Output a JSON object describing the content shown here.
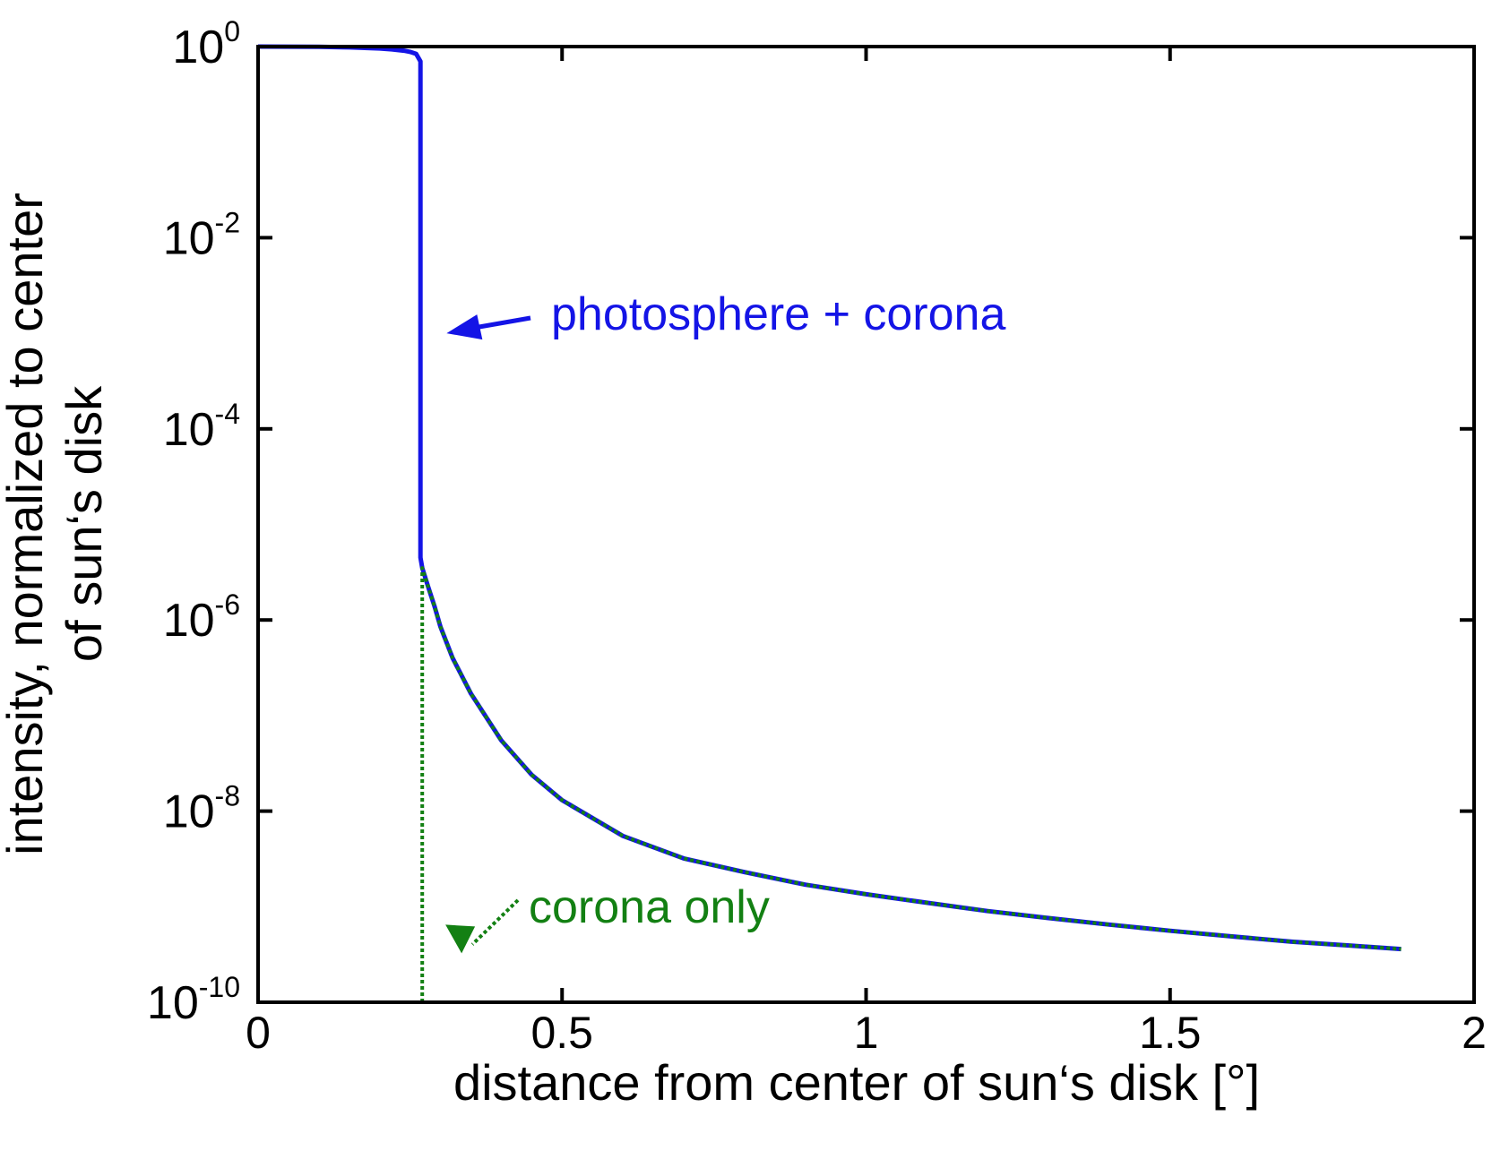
{
  "chart_data": {
    "type": "line",
    "title": "",
    "xlabel": "distance from center of sun‘s disk [°]",
    "ylabel_line1": "intensity, normalized to center",
    "ylabel_line2": "of sun‘s disk",
    "xlim": [
      0,
      2
    ],
    "ylim": [
      1e-10,
      1
    ],
    "yscale": "log",
    "grid": false,
    "x_ticks": [
      {
        "value": 0,
        "label": "0"
      },
      {
        "value": 0.5,
        "label": "0.5"
      },
      {
        "value": 1,
        "label": "1"
      },
      {
        "value": 1.5,
        "label": "1.5"
      },
      {
        "value": 2,
        "label": "2"
      }
    ],
    "y_ticks": [
      {
        "value": 1,
        "base": "10",
        "exp": "0"
      },
      {
        "value": 0.01,
        "base": "10",
        "exp": "-2"
      },
      {
        "value": 0.0001,
        "base": "10",
        "exp": "-4"
      },
      {
        "value": 1e-06,
        "base": "10",
        "exp": "-6"
      },
      {
        "value": 1e-08,
        "base": "10",
        "exp": "-8"
      },
      {
        "value": 1e-10,
        "base": "10",
        "exp": "-10"
      }
    ],
    "series": [
      {
        "name": "photosphere + corona",
        "color": "#1414e6",
        "style": "solid",
        "x": [
          0,
          0.05,
          0.1,
          0.15,
          0.2,
          0.22,
          0.24,
          0.25,
          0.26,
          0.267,
          0.267,
          0.27,
          0.28,
          0.29,
          0.3,
          0.32,
          0.35,
          0.4,
          0.45,
          0.5,
          0.6,
          0.7,
          0.8,
          0.9,
          1.0,
          1.1,
          1.2,
          1.3,
          1.4,
          1.5,
          1.6,
          1.7,
          1.8,
          1.88
        ],
        "y": [
          1,
          0.998,
          0.993,
          0.98,
          0.955,
          0.935,
          0.905,
          0.88,
          0.84,
          0.7,
          4.5e-06,
          3.5e-06,
          2.2e-06,
          1.4e-06,
          8.5e-07,
          4e-07,
          1.7e-07,
          5.5e-08,
          2.4e-08,
          1.3e-08,
          5.5e-09,
          3.2e-09,
          2.3e-09,
          1.7e-09,
          1.35e-09,
          1.1e-09,
          9e-10,
          7.6e-10,
          6.5e-10,
          5.6e-10,
          4.9e-10,
          4.3e-10,
          3.9e-10,
          3.6e-10
        ]
      },
      {
        "name": "corona only",
        "color": "#138013",
        "style": "dotted",
        "x": [
          0.27,
          0.27,
          0.28,
          0.29,
          0.3,
          0.32,
          0.35,
          0.4,
          0.45,
          0.5,
          0.6,
          0.7,
          0.8,
          0.9,
          1.0,
          1.1,
          1.2,
          1.3,
          1.4,
          1.5,
          1.6,
          1.7,
          1.8,
          1.88
        ],
        "y": [
          1e-10,
          3.5e-06,
          2.2e-06,
          1.4e-06,
          8.5e-07,
          4e-07,
          1.7e-07,
          5.5e-08,
          2.4e-08,
          1.3e-08,
          5.5e-09,
          3.2e-09,
          2.3e-09,
          1.7e-09,
          1.35e-09,
          1.1e-09,
          9e-10,
          7.6e-10,
          6.5e-10,
          5.6e-10,
          4.9e-10,
          4.3e-10,
          3.9e-10,
          3.6e-10
        ]
      }
    ],
    "annotations": [
      {
        "text": "photosphere + corona",
        "color": "#1414e6",
        "arrow": "solid",
        "points_to_x": 0.31,
        "points_to_y": 0.001
      },
      {
        "text": "corona only",
        "color": "#138013",
        "arrow": "dotted",
        "points_to_x": 0.32,
        "points_to_y": 5e-10
      }
    ]
  }
}
